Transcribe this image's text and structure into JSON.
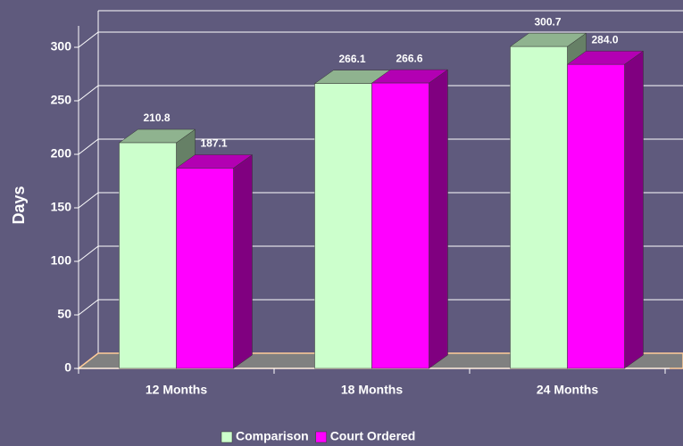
{
  "chart_data": {
    "type": "bar3d",
    "y_label": "Days",
    "categories": [
      "12 Months",
      "18 Months",
      "24 Months"
    ],
    "series": [
      {
        "name": "Comparison",
        "color": "#ccffcc",
        "values": [
          210.8,
          266.1,
          300.7
        ],
        "value_labels": [
          "210.8",
          "266.1",
          "300.7"
        ]
      },
      {
        "name": "Court Ordered",
        "color": "#ff00ff",
        "values": [
          187.1,
          266.6,
          284
        ],
        "value_labels": [
          "187.1",
          "266.6",
          "284.0"
        ]
      }
    ],
    "ylim": [
      0,
      320
    ],
    "yticks": [
      0,
      50,
      100,
      150,
      200,
      250,
      300
    ],
    "grid": true,
    "legend": "bottom"
  }
}
